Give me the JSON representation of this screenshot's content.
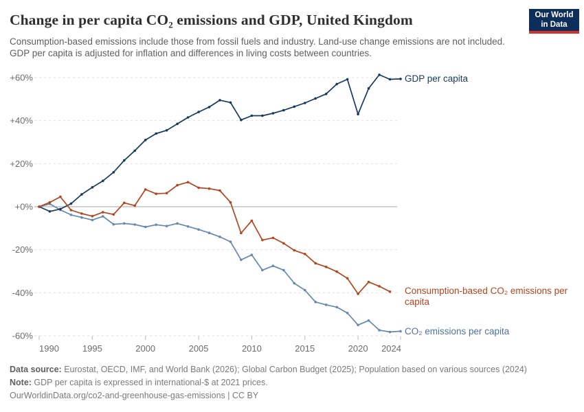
{
  "header": {
    "title": "Change in per capita CO₂ emissions and GDP, United Kingdom",
    "subtitle": "Consumption-based emissions include those from fossil fuels and industry. Land-use change emissions are not included. GDP per capita is adjusted for inflation and differences in living costs between countries.",
    "logo_line1": "Our World",
    "logo_line2": "in Data"
  },
  "chart_data": {
    "type": "line",
    "title": "Change in per capita CO₂ emissions and GDP, United Kingdom",
    "xlabel": "",
    "ylabel": "",
    "xlim": [
      1990,
      2024
    ],
    "ylim": [
      -60,
      60
    ],
    "grid": "horizontal-dashed",
    "legend_position": "end-of-line",
    "unit": "%",
    "xticks": [
      [
        1990,
        "1990"
      ],
      [
        1995,
        "1995"
      ],
      [
        2000,
        "2000"
      ],
      [
        2005,
        "2005"
      ],
      [
        2010,
        "2010"
      ],
      [
        2015,
        "2015"
      ],
      [
        2020,
        "2020"
      ],
      [
        2024,
        "2024"
      ]
    ],
    "yticks": [
      [
        60,
        "+60%"
      ],
      [
        40,
        "+40%"
      ],
      [
        20,
        "+20%"
      ],
      [
        0,
        "+0%"
      ],
      [
        -20,
        "-20%"
      ],
      [
        -40,
        "-40%"
      ],
      [
        -60,
        "-60%"
      ]
    ],
    "series": [
      {
        "name": "CO₂ emissions per capita",
        "color": "#6687ae",
        "label_color": "#50719f",
        "start_year": 1990,
        "values": [
          0,
          1.3,
          -1.5,
          -3.8,
          -5,
          -6.2,
          -4.5,
          -8.2,
          -7.8,
          -8.3,
          -9.4,
          -8.4,
          -9,
          -7.8,
          -9.2,
          -10.6,
          -12.2,
          -14,
          -16.3,
          -24.7,
          -22.4,
          -29.5,
          -27.5,
          -29.5,
          -35.6,
          -38.8,
          -44.3,
          -45.6,
          -46.7,
          -49.4,
          -55,
          -52.9,
          -57.4,
          -58.2,
          -57.9
        ]
      },
      {
        "name": "GDP per capita",
        "color": "#16395e",
        "label_color": "#16395e",
        "start_year": 1990,
        "values": [
          0,
          -2.2,
          -1.1,
          1.4,
          5.7,
          9,
          12,
          16,
          21.5,
          26,
          31,
          34,
          35.5,
          38.5,
          41.5,
          44,
          46.3,
          49.5,
          48.4,
          40.3,
          42.3,
          42.3,
          43.4,
          44.8,
          46.5,
          48.2,
          50.3,
          52.4,
          57,
          59.2,
          43,
          55,
          61.3,
          59.2,
          59.4
        ]
      },
      {
        "name": "Consumption-based CO₂ emissions per capita",
        "color": "#b5431c",
        "label_color": "#b5431c",
        "start_year": 1990,
        "values": [
          0,
          2,
          4.6,
          -1.6,
          -3.2,
          -4.4,
          -2.6,
          -3.6,
          1.8,
          0.5,
          8,
          6,
          6.3,
          10,
          11.4,
          8.8,
          8.4,
          7.5,
          2,
          -12.3,
          -6.5,
          -15.5,
          -14.5,
          -17,
          -20.3,
          -22,
          -26.3,
          -28,
          -30.2,
          -33.3,
          -40.5,
          -35,
          -37,
          -39.5
        ]
      }
    ]
  },
  "footer": {
    "source_label": "Data source:",
    "source_text": " Eurostat, OECD, IMF, and World Bank (2026); Global Carbon Budget (2025); Population based on various sources (2024)",
    "note_label": "Note:",
    "note_text": " GDP per capita is expressed in international-$ at 2021 prices.",
    "link_text": "OurWorldinData.org/co2-and-greenhouse-gas-emissions",
    "license_text": " | CC BY"
  }
}
